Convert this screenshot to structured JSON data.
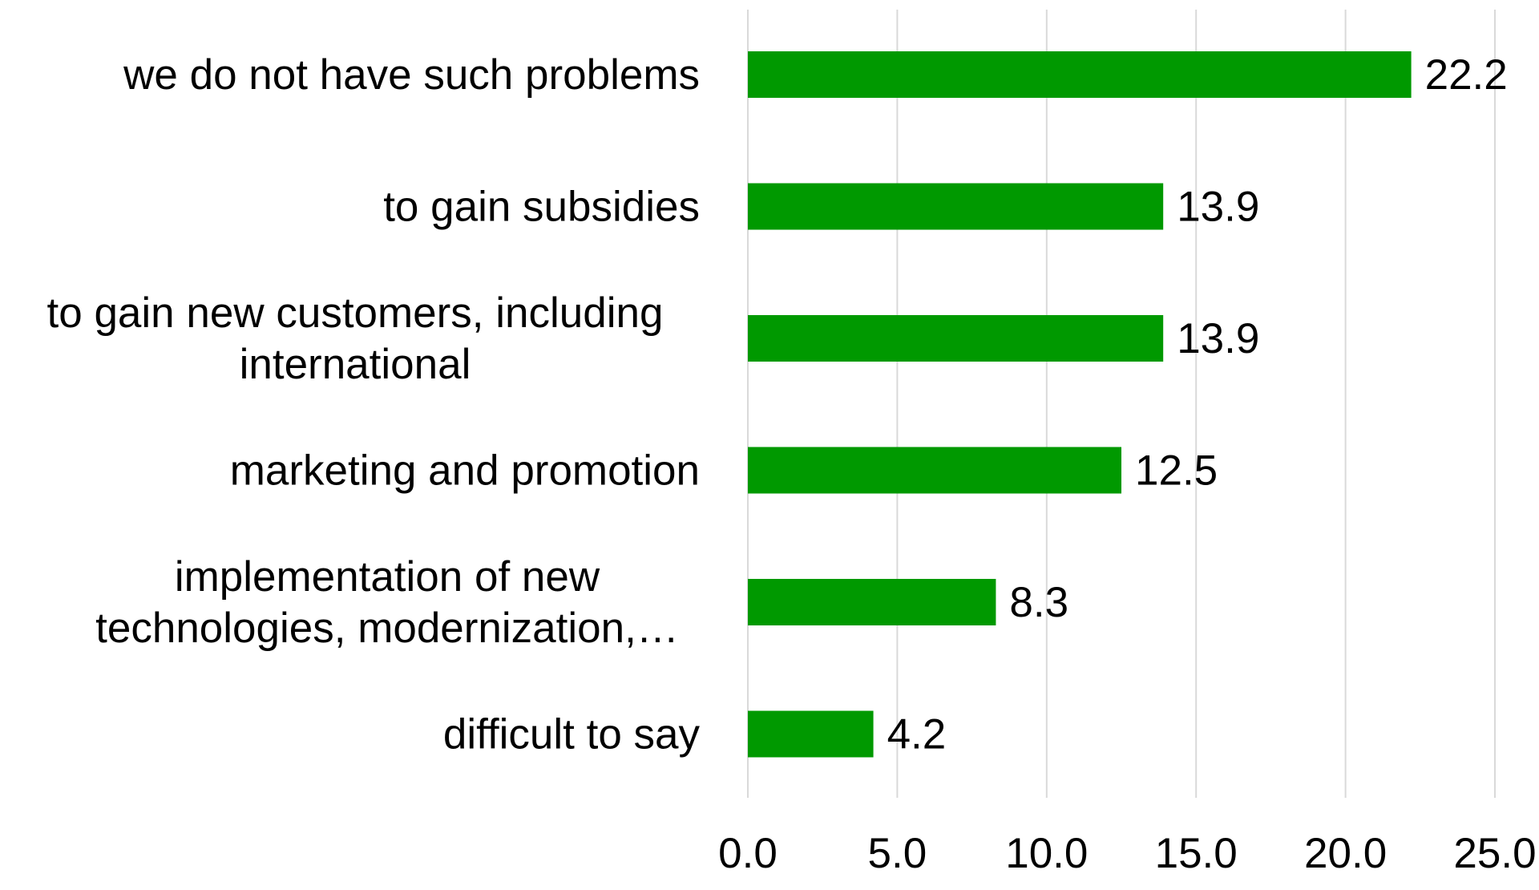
{
  "chart_data": {
    "type": "bar",
    "orientation": "horizontal",
    "categories": [
      [
        "we do not have such problems"
      ],
      [
        "to gain subsidies"
      ],
      [
        "to gain new customers, including",
        "international"
      ],
      [
        "marketing and promotion"
      ],
      [
        "implementation of new",
        "technologies, modernization,…"
      ],
      [
        "difficult to say"
      ]
    ],
    "values": [
      22.2,
      13.9,
      13.9,
      12.5,
      8.3,
      4.2
    ],
    "data_labels": [
      "22.2",
      "13.9",
      "13.9",
      "12.5",
      "8.3",
      "4.2"
    ],
    "xlim": [
      0,
      25
    ],
    "x_ticks": [
      "0.0",
      "5.0",
      "10.0",
      "15.0",
      "20.0",
      "25.0"
    ],
    "title": "",
    "xlabel": "",
    "ylabel": "",
    "grid": "vertical",
    "legend": "none",
    "colors": {
      "bar": "#009900",
      "grid": "#d9d9d9",
      "text": "#000000"
    }
  }
}
